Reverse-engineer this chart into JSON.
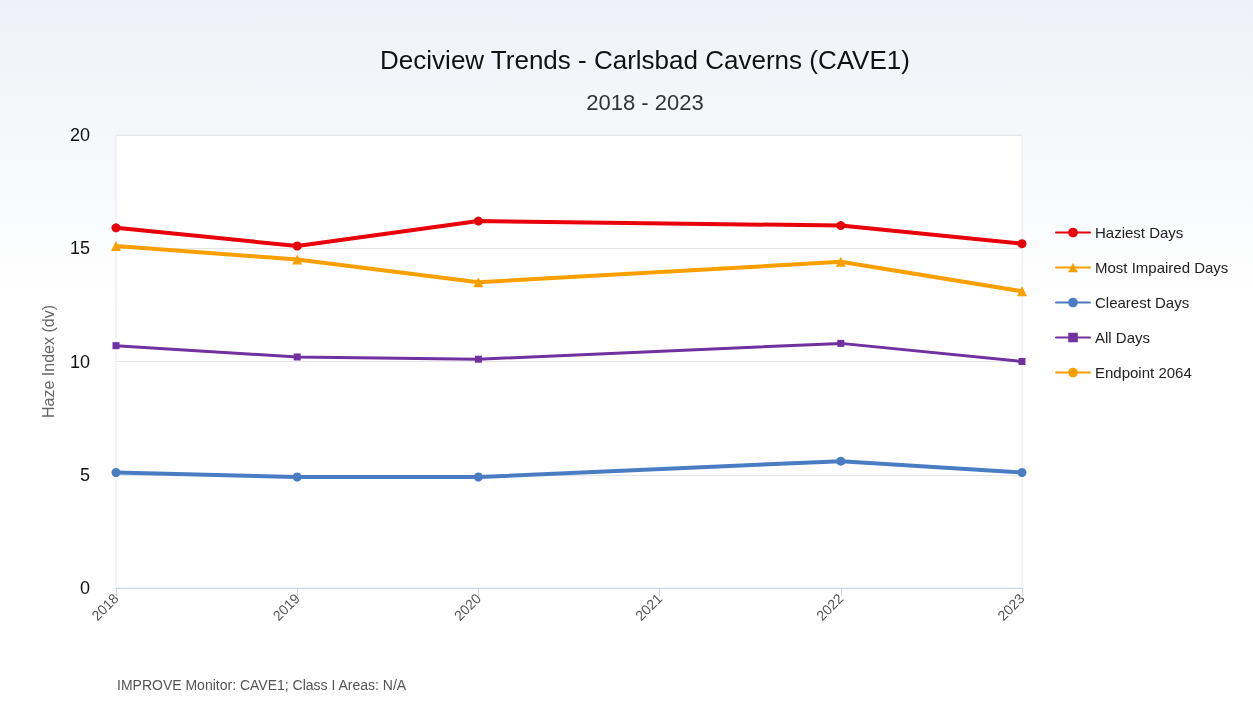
{
  "chart_data": {
    "type": "line",
    "title": "Deciview Trends - Carlsbad Caverns (CAVE1)",
    "subtitle": "2018 - 2023",
    "ylabel": "Haze Index (dv)",
    "x": [
      2018,
      2019,
      2020,
      2022,
      2023
    ],
    "series": [
      {
        "name": "Haziest Days",
        "color": "#e8000b",
        "marker": "circle",
        "values": [
          15.9,
          15.1,
          16.2,
          16.0,
          15.2
        ]
      },
      {
        "name": "Most Impaired Days",
        "color": "#f9a000",
        "marker": "triangle",
        "values": [
          15.1,
          14.5,
          13.5,
          14.4,
          13.1
        ]
      },
      {
        "name": "Clearest Days",
        "color": "#4a7cc4",
        "marker": "circle",
        "values": [
          5.1,
          4.9,
          4.9,
          5.6,
          5.1
        ]
      },
      {
        "name": "All Days",
        "color": "#7030a0",
        "marker": "square",
        "values": [
          10.7,
          10.2,
          10.1,
          10.8,
          10.0
        ]
      },
      {
        "name": "Endpoint 2064",
        "color": "#f9a000",
        "marker": "none",
        "values": [
          null,
          null,
          null,
          null,
          null
        ]
      }
    ],
    "xlim": [
      2018,
      2023
    ],
    "xticks": [
      2018,
      2019,
      2020,
      2021,
      2022,
      2023
    ],
    "ylim": [
      0,
      20
    ],
    "yticks": [
      0,
      5,
      10,
      15,
      20
    ],
    "grid": "y",
    "legend": "right",
    "annotations": [
      "IMPROVE Monitor: CAVE1; Class I Areas: N/A"
    ]
  }
}
